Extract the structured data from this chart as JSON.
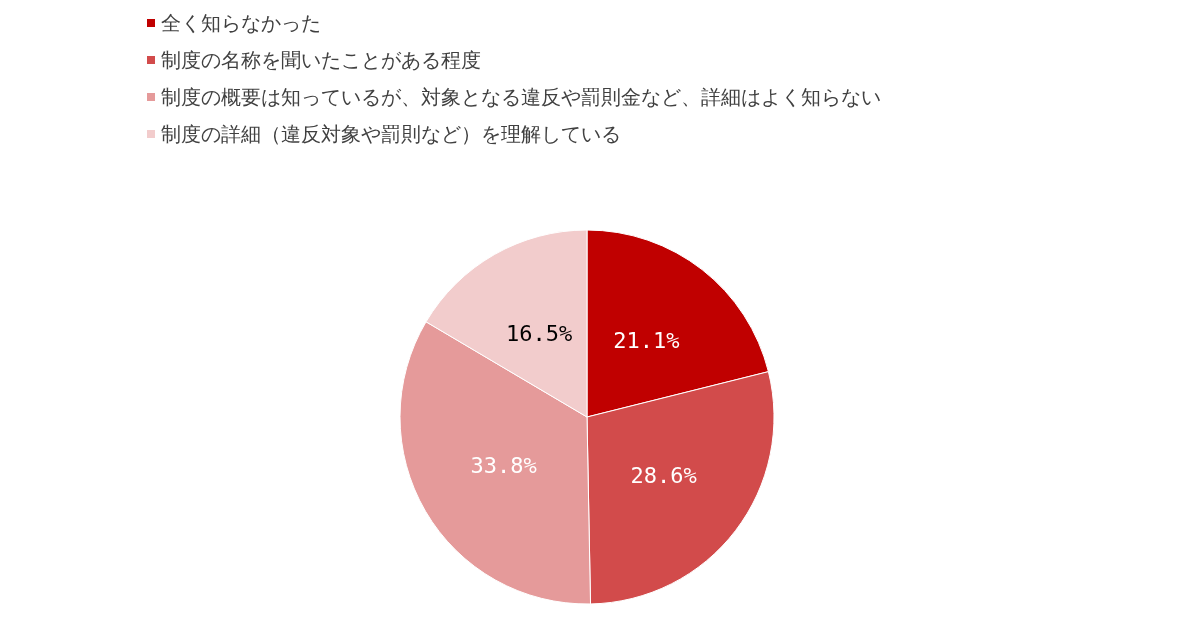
{
  "chart_data": {
    "type": "pie",
    "categories": [
      "全く知らなかった",
      "制度の名称を聞いたことがある程度",
      "制度の概要は知っているが、対象となる違反や罰則金など、詳細はよく知らない",
      "制度の詳細（違反対象や罰則など）を理解している"
    ],
    "values": [
      21.1,
      28.6,
      33.8,
      16.5
    ],
    "colors": [
      "#c00000",
      "#d24b4b",
      "#e59a9a",
      "#f2cccc"
    ],
    "value_labels": [
      "21.1%",
      "28.6%",
      "33.8%",
      "16.5%"
    ],
    "legend": "top left"
  }
}
